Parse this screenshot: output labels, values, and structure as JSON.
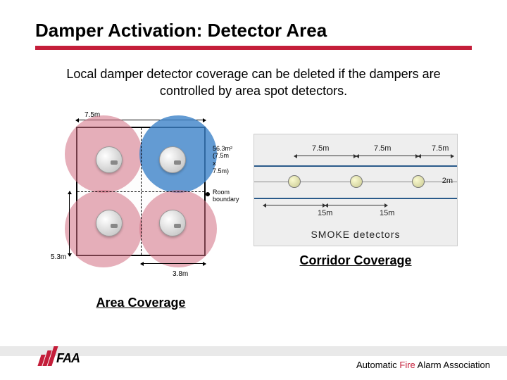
{
  "title": "Damper Activation: Detector Area",
  "body": "Local damper detector coverage can be deleted if the dampers are controlled by area spot detectors.",
  "area": {
    "caption": "Area Coverage",
    "top_dim": "7.5m",
    "right_label_line1": "56.3m²",
    "right_label_line2": "(7.5m x 7.5m)",
    "room_label_line1": "Room",
    "room_label_line2": "boundary",
    "left_dim": "5.3m",
    "bottom_dim": "3.8m",
    "colors": {
      "circle_pink": "rgba(210,110,130,0.55)",
      "circle_blue": "rgba(60,130,200,0.8)",
      "box_border": "#000000"
    }
  },
  "corridor": {
    "caption": "Corridor Coverage",
    "top_dim": "7.5m",
    "bottom_dim": "15m",
    "right_dim": "2m",
    "legend": "SMOKE detectors",
    "colors": {
      "bg": "#eeeeee",
      "line": "#2a5a8a"
    }
  },
  "footer": {
    "logo_text": "FAA",
    "org_pre": "Automatic ",
    "org_fire": "Fire",
    "org_post": " Alarm Association",
    "accent": "#c41e3a"
  }
}
